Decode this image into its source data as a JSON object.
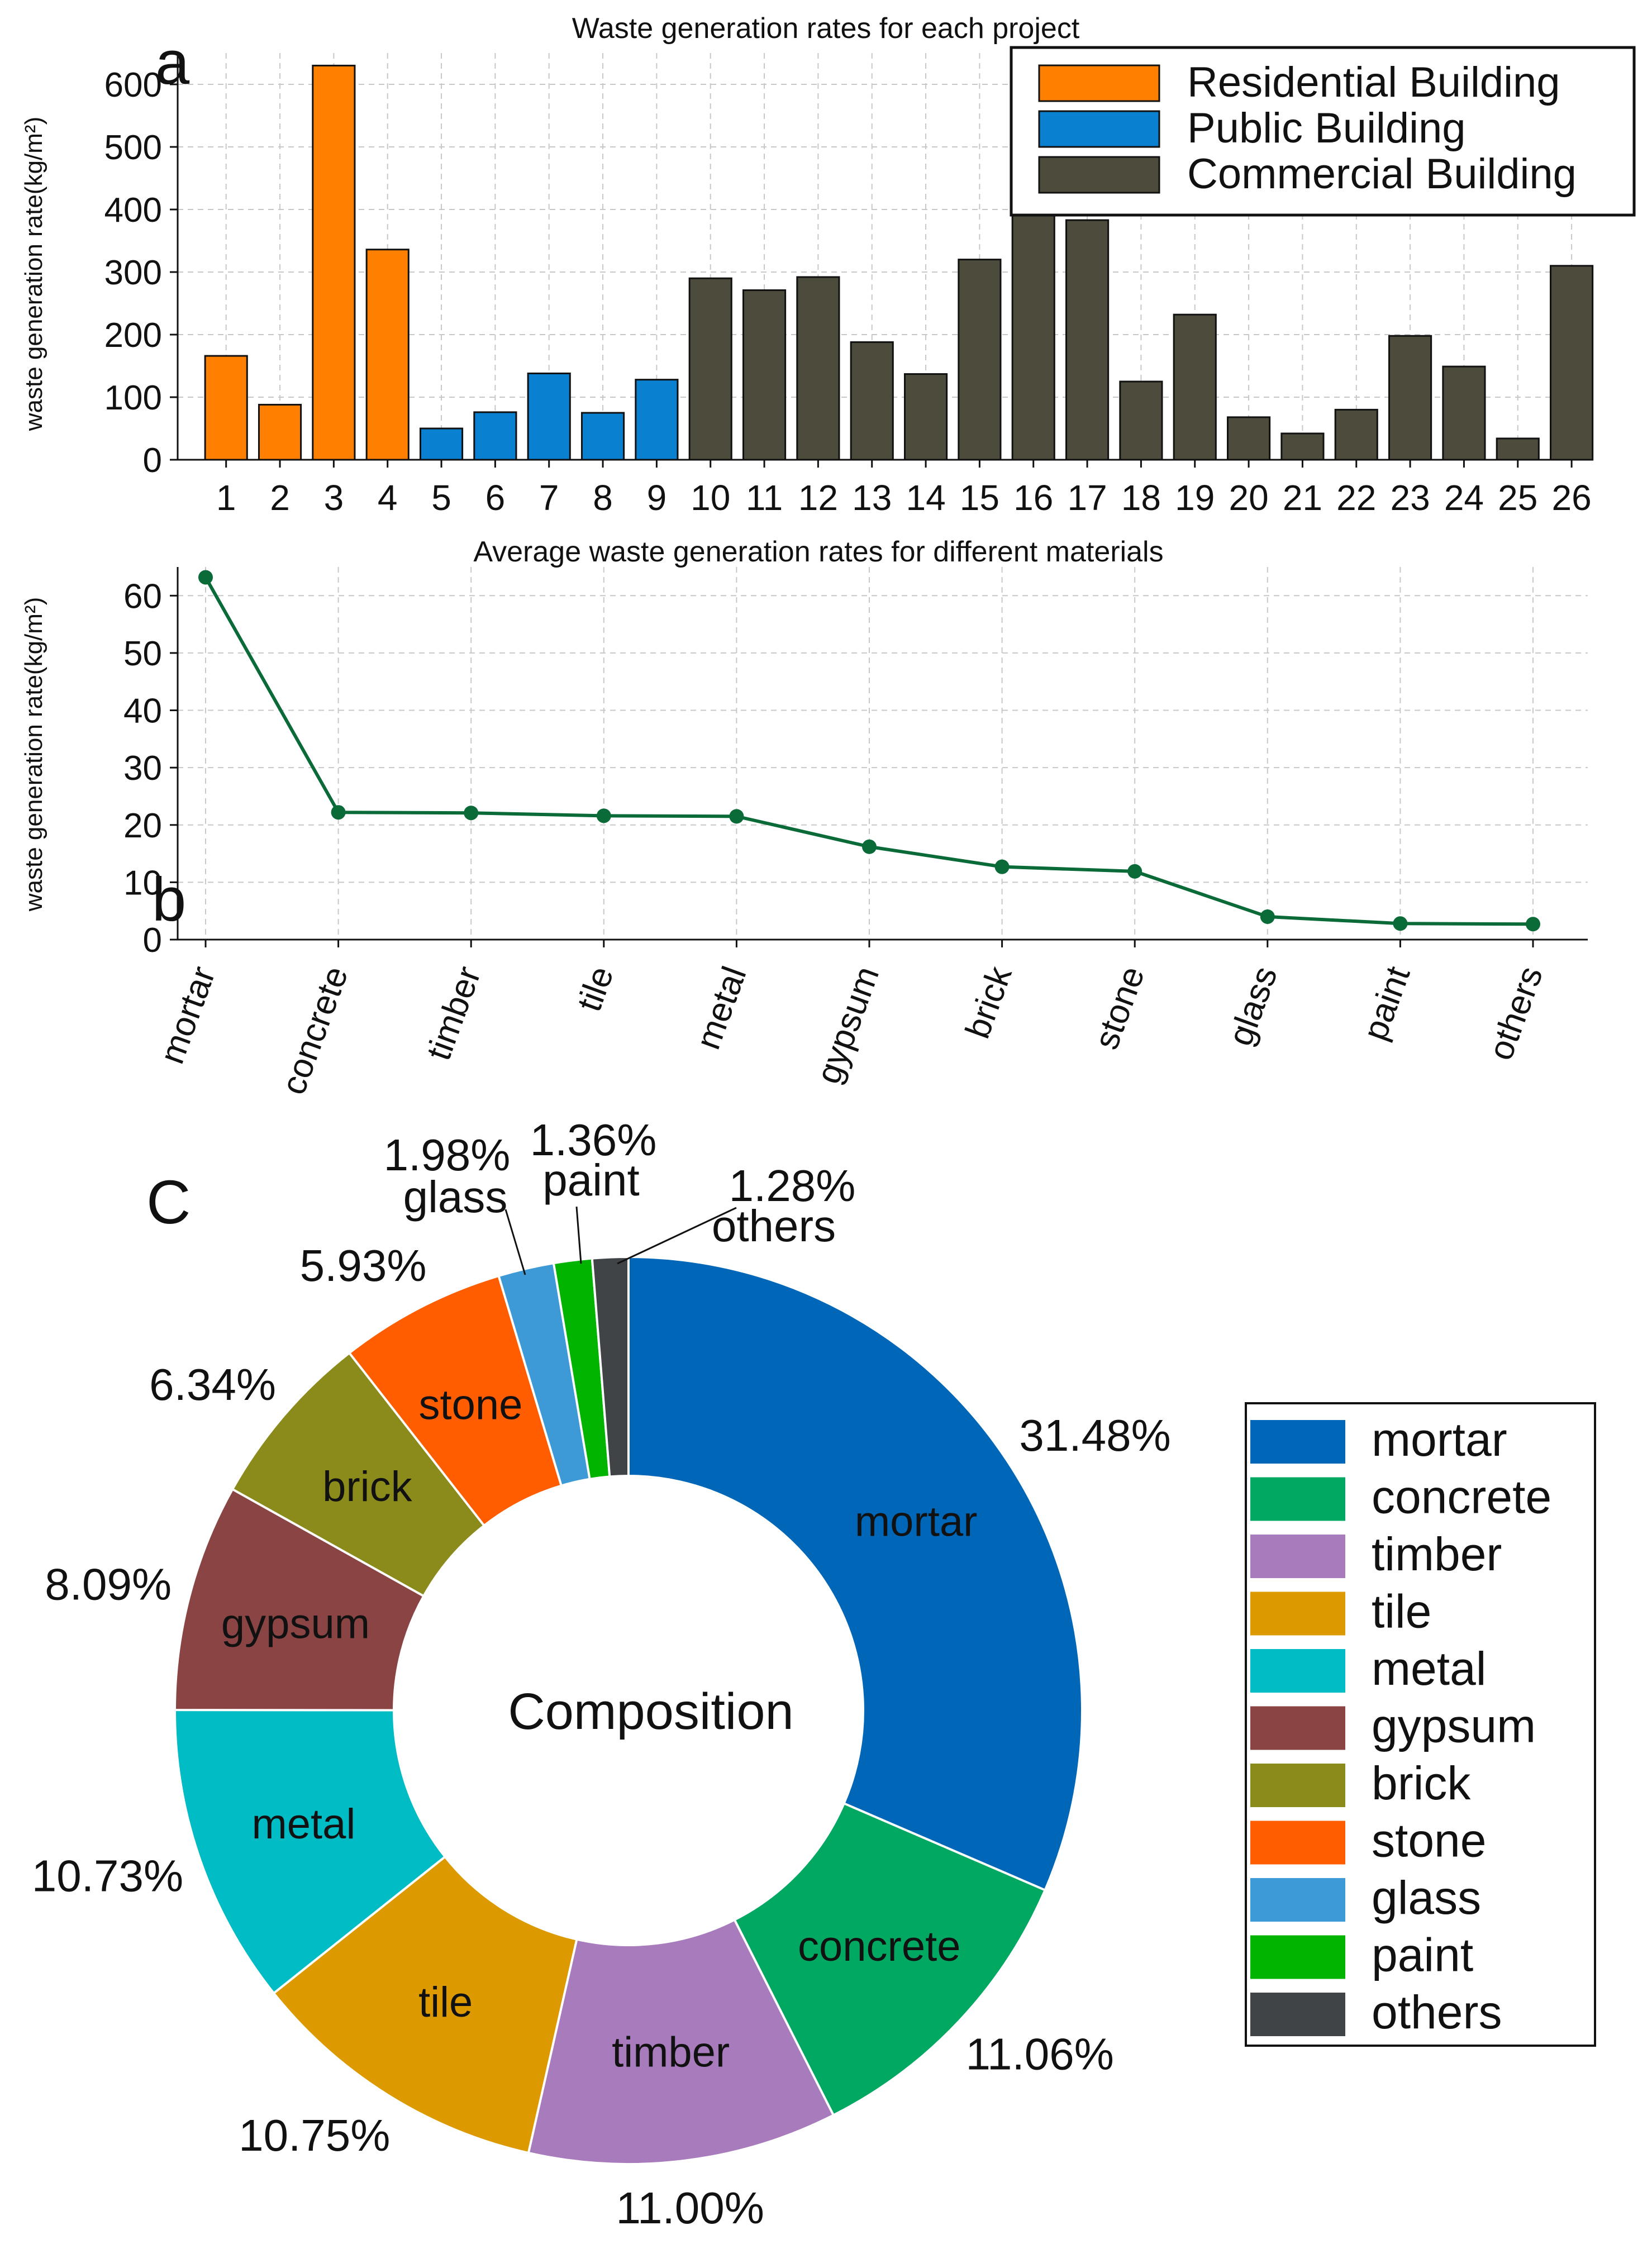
{
  "chart_data": [
    {
      "type": "bar",
      "panel_label": "a",
      "title": "Waste generation rates for each project",
      "ylabel": "waste generation rate(kg/m²)",
      "xlabel": "",
      "ylim": [
        0,
        650
      ],
      "yticks": [
        0,
        100,
        200,
        300,
        400,
        500,
        600
      ],
      "grid": true,
      "legend_position": "top-right",
      "categories": [
        "1",
        "2",
        "3",
        "4",
        "5",
        "6",
        "7",
        "8",
        "9",
        "10",
        "11",
        "12",
        "13",
        "14",
        "15",
        "16",
        "17",
        "18",
        "19",
        "20",
        "21",
        "22",
        "23",
        "24",
        "25",
        "26"
      ],
      "values": [
        166,
        88,
        630,
        336,
        50,
        76,
        138,
        75,
        128,
        290,
        271,
        292,
        188,
        137,
        320,
        413,
        383,
        125,
        232,
        68,
        42,
        80,
        198,
        149,
        34,
        310
      ],
      "groups": [
        {
          "name": "Residential Building",
          "color": "#ff8000",
          "members": [
            "1",
            "2",
            "3",
            "4"
          ]
        },
        {
          "name": "Public Building",
          "color": "#0a80d0",
          "members": [
            "5",
            "6",
            "7",
            "8",
            "9"
          ]
        },
        {
          "name": "Commercial Building",
          "color": "#4d4b3c",
          "members": [
            "10",
            "11",
            "12",
            "13",
            "14",
            "15",
            "16",
            "17",
            "18",
            "19",
            "20",
            "21",
            "22",
            "23",
            "24",
            "25",
            "26"
          ]
        }
      ]
    },
    {
      "type": "line",
      "panel_label": "b",
      "title": "Average waste generation rates for different materials",
      "ylabel": "waste generation rate(kg/m²)",
      "xlabel": "",
      "ylim": [
        0,
        65
      ],
      "yticks": [
        0,
        10,
        20,
        30,
        40,
        50,
        60
      ],
      "grid": true,
      "color": "#0a6a38",
      "categories": [
        "mortar",
        "concrete",
        "timber",
        "tile",
        "metal",
        "gypsum",
        "brick",
        "stone",
        "glass",
        "paint",
        "others"
      ],
      "values": [
        63.2,
        22.2,
        22.1,
        21.6,
        21.5,
        16.2,
        12.7,
        11.9,
        4.0,
        2.8,
        2.7
      ]
    },
    {
      "type": "pie",
      "panel_label": "C",
      "center_label": "Composition",
      "donut": true,
      "legend_position": "right",
      "slices": [
        {
          "label": "mortar",
          "value": 31.48,
          "pct": "31.48%",
          "color": "#0066b8"
        },
        {
          "label": "concrete",
          "value": 11.06,
          "pct": "11.06%",
          "color": "#00a862"
        },
        {
          "label": "timber",
          "value": 11.0,
          "pct": "11.00%",
          "color": "#a87bbc"
        },
        {
          "label": "tile",
          "value": 10.75,
          "pct": "10.75%",
          "color": "#dd9a00"
        },
        {
          "label": "metal",
          "value": 10.73,
          "pct": "10.73%",
          "color": "#00bcc4"
        },
        {
          "label": "gypsum",
          "value": 8.09,
          "pct": "8.09%",
          "color": "#8a4444"
        },
        {
          "label": "brick",
          "value": 6.34,
          "pct": "6.34%",
          "color": "#8a8b1a"
        },
        {
          "label": "stone",
          "value": 5.93,
          "pct": "5.93%",
          "color": "#ff5d00"
        },
        {
          "label": "glass",
          "value": 1.98,
          "pct": "1.98%",
          "color": "#3d9ad6"
        },
        {
          "label": "paint",
          "value": 1.36,
          "pct": "1.36%",
          "color": "#00b400"
        },
        {
          "label": "others",
          "value": 1.28,
          "pct": "1.28%",
          "color": "#404447"
        }
      ]
    }
  ]
}
